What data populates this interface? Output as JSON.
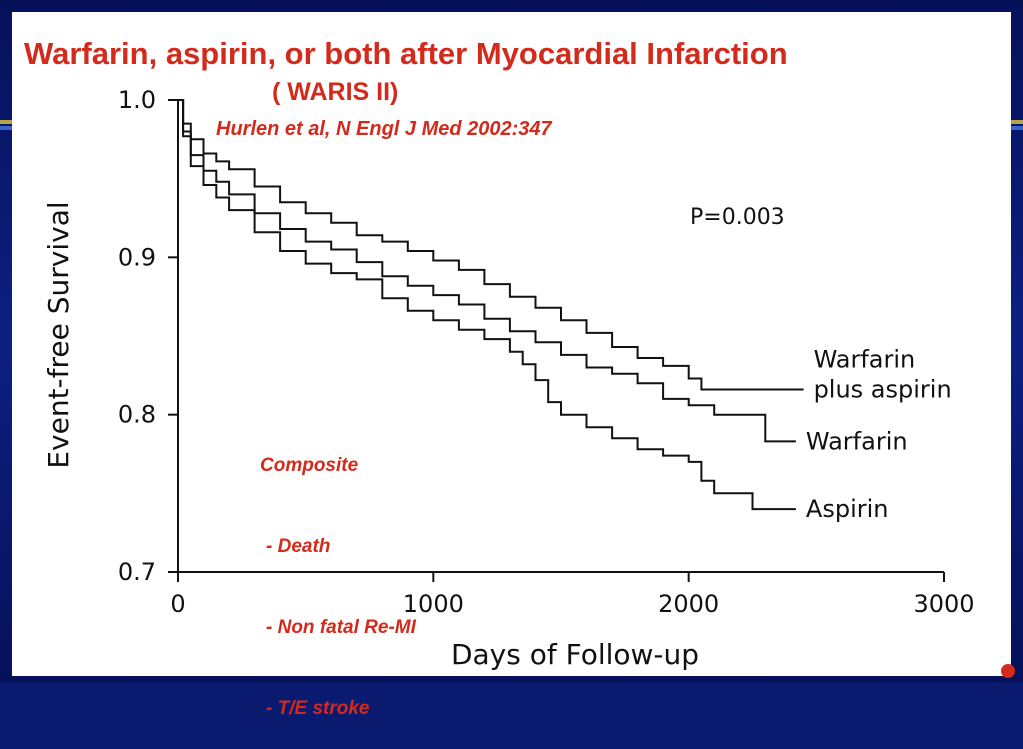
{
  "slide": {
    "title": "Warfarin, aspirin, or both after Myocardial Infarction",
    "subtitle": "( WARIS II)",
    "citation": "Hurlen et al, N Engl J Med 2002:347",
    "composite": {
      "heading": "Composite",
      "items": [
        "- Death",
        "- Non fatal Re-MI",
        "- T/E stroke"
      ]
    }
  },
  "colors": {
    "background": "#0a1a6e",
    "accent_red": "#d42a1c",
    "line": "#111111"
  },
  "chart_data": {
    "type": "line",
    "title": "",
    "xlabel": "Days of Follow-up",
    "ylabel": "Event-free Survival",
    "xlim": [
      0,
      3000
    ],
    "ylim": [
      0.7,
      1.0
    ],
    "xticks": [
      0,
      1000,
      2000,
      3000
    ],
    "yticks": [
      0.7,
      0.8,
      0.9,
      1.0
    ],
    "ytick_labels": [
      "0.7",
      "0.8",
      "0.9",
      "1.0"
    ],
    "annotation": "P=0.003",
    "grid": false,
    "step": true,
    "series": [
      {
        "name": "Warfarin plus aspirin",
        "x": [
          0,
          20,
          50,
          100,
          150,
          200,
          300,
          400,
          500,
          600,
          700,
          800,
          900,
          1000,
          1100,
          1200,
          1300,
          1400,
          1500,
          1600,
          1700,
          1800,
          1900,
          2000,
          2050,
          2100,
          2300,
          2450
        ],
        "y": [
          1.0,
          0.985,
          0.975,
          0.966,
          0.961,
          0.956,
          0.945,
          0.935,
          0.928,
          0.922,
          0.914,
          0.91,
          0.904,
          0.898,
          0.892,
          0.883,
          0.875,
          0.868,
          0.86,
          0.852,
          0.843,
          0.836,
          0.831,
          0.823,
          0.816,
          0.816,
          0.816,
          0.816
        ],
        "label": [
          "Warfarin",
          "plus aspirin"
        ]
      },
      {
        "name": "Warfarin",
        "x": [
          0,
          20,
          50,
          100,
          150,
          200,
          300,
          400,
          500,
          600,
          700,
          800,
          900,
          1000,
          1100,
          1200,
          1300,
          1400,
          1500,
          1600,
          1700,
          1800,
          1900,
          2000,
          2100,
          2200,
          2280,
          2300,
          2420
        ],
        "y": [
          1.0,
          0.98,
          0.965,
          0.955,
          0.948,
          0.94,
          0.928,
          0.918,
          0.91,
          0.905,
          0.897,
          0.888,
          0.882,
          0.876,
          0.87,
          0.861,
          0.853,
          0.846,
          0.838,
          0.83,
          0.826,
          0.82,
          0.81,
          0.806,
          0.8,
          0.8,
          0.8,
          0.783,
          0.783
        ],
        "label": [
          "Warfarin"
        ]
      },
      {
        "name": "Aspirin",
        "x": [
          0,
          20,
          50,
          100,
          150,
          200,
          300,
          400,
          500,
          600,
          700,
          800,
          900,
          1000,
          1100,
          1200,
          1300,
          1350,
          1400,
          1450,
          1500,
          1600,
          1700,
          1800,
          1900,
          2000,
          2050,
          2100,
          2250,
          2420
        ],
        "y": [
          1.0,
          0.977,
          0.958,
          0.946,
          0.938,
          0.93,
          0.916,
          0.904,
          0.896,
          0.89,
          0.886,
          0.874,
          0.866,
          0.86,
          0.854,
          0.848,
          0.84,
          0.832,
          0.822,
          0.808,
          0.8,
          0.792,
          0.785,
          0.778,
          0.774,
          0.77,
          0.758,
          0.75,
          0.74,
          0.74
        ],
        "label": [
          "Aspirin"
        ]
      }
    ]
  }
}
